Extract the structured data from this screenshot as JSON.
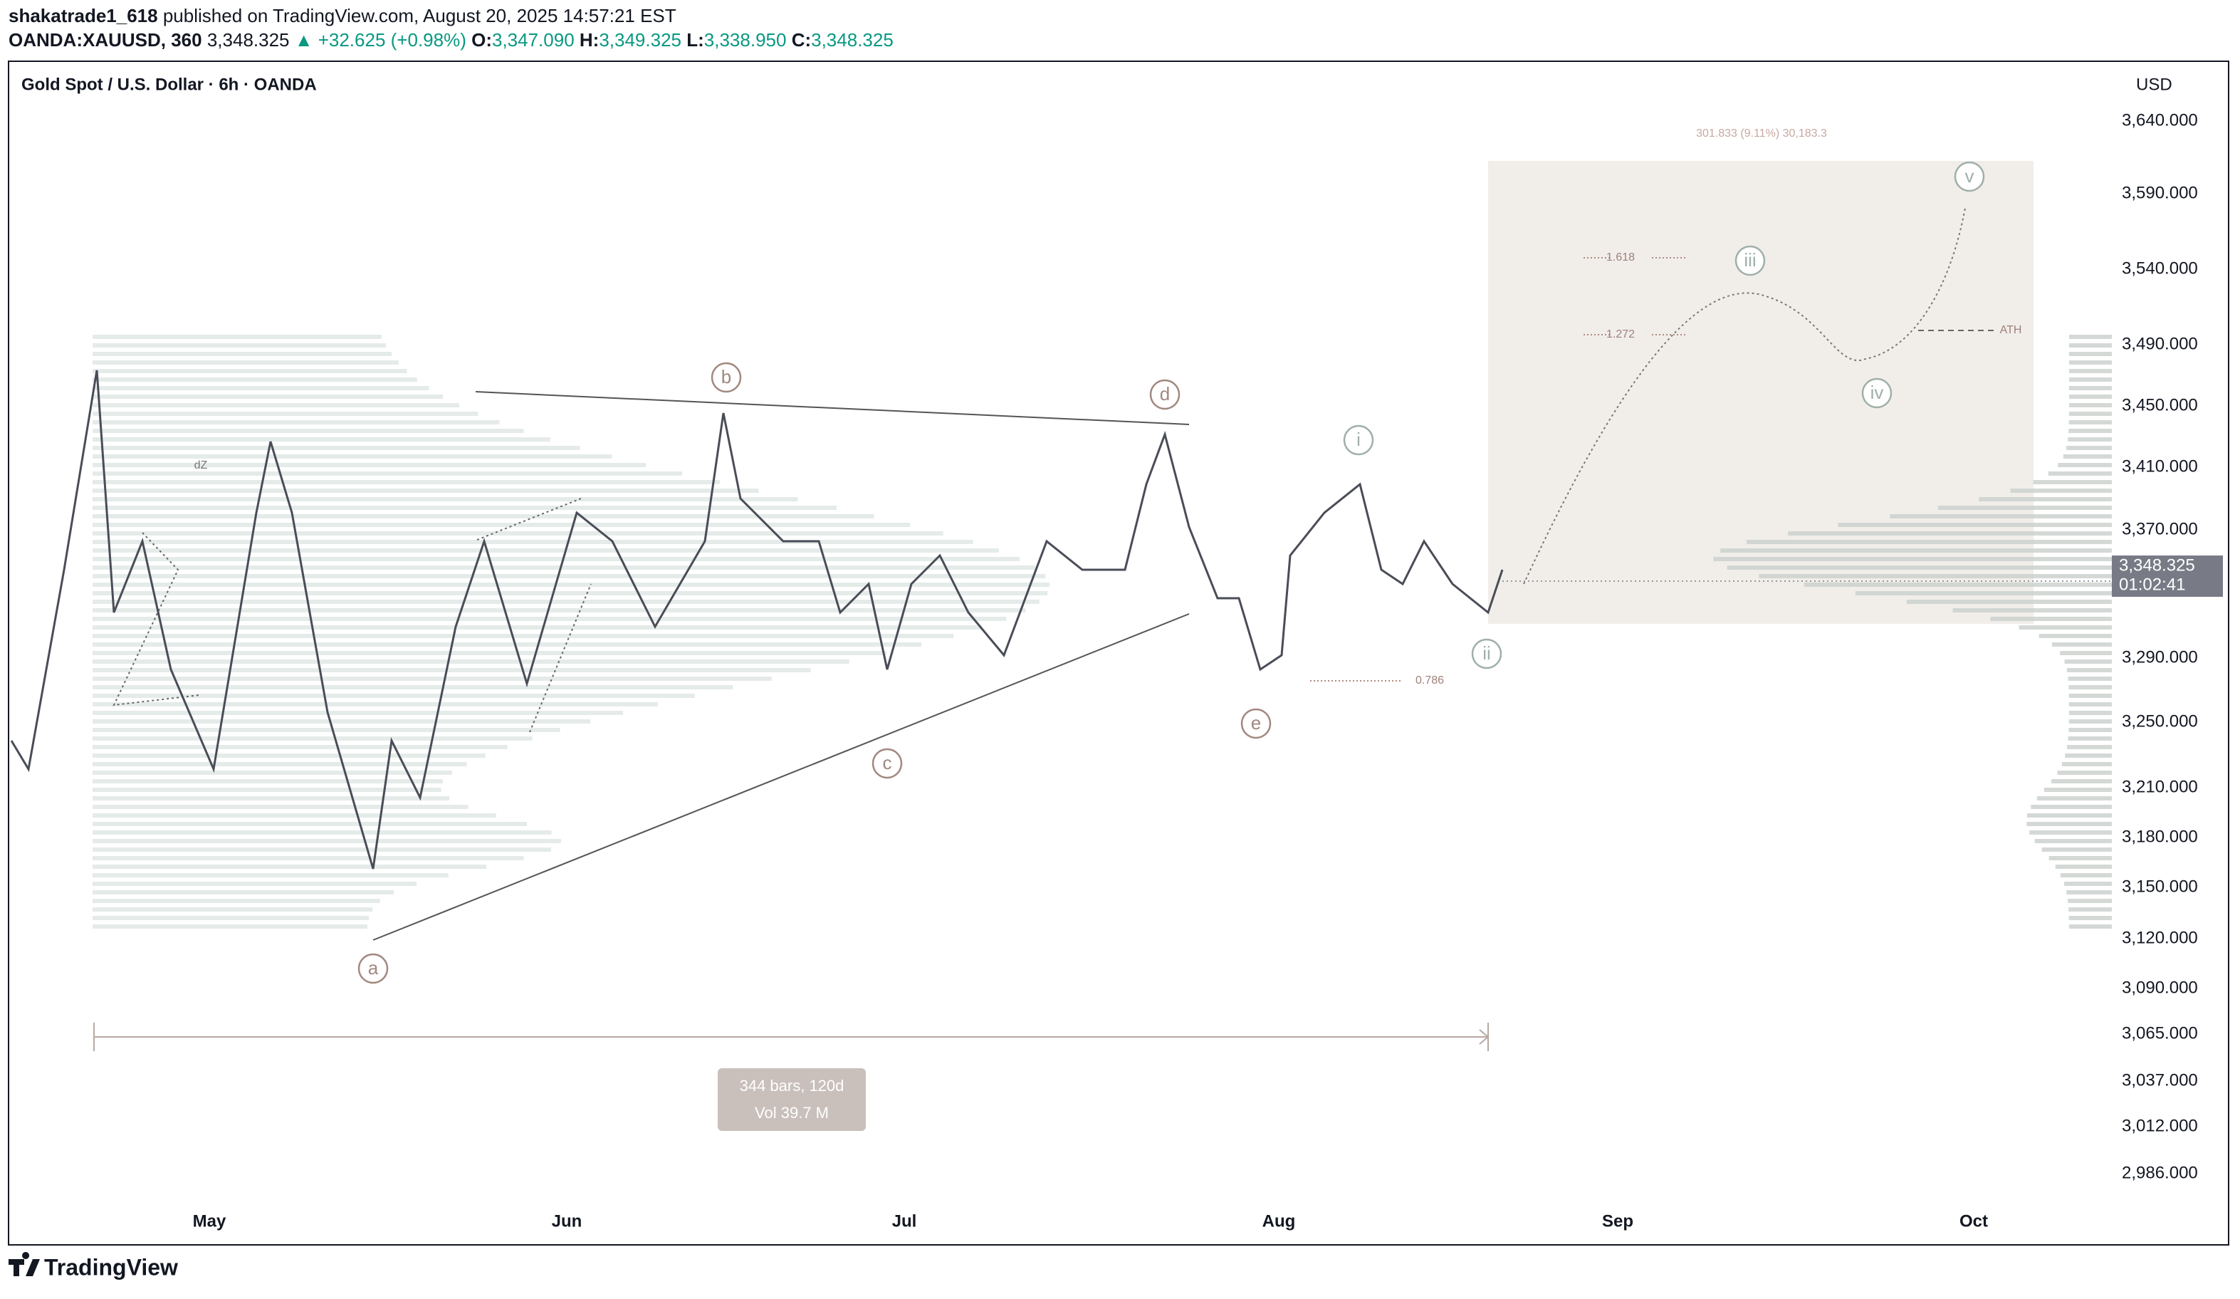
{
  "header": {
    "publisher": "shakatrade1_618",
    "published": "published on TradingView.com, August 20, 2025 14:57:21 EST",
    "symbol": "OANDA:XAUUSD, 360",
    "last": "3,348.325",
    "change": "▲ +32.625 (+0.98%)",
    "ohlc": [
      {
        "key": "O:",
        "value": "3,347.090"
      },
      {
        "key": "H:",
        "value": "3,349.325"
      },
      {
        "key": "L:",
        "value": "3,338.950"
      },
      {
        "key": "C:",
        "value": "3,348.325"
      }
    ]
  },
  "chart": {
    "title": "Gold Spot / U.S. Dollar · 6h · OANDA",
    "currency": "USD",
    "price_axis": [
      "3,640.000",
      "3,590.000",
      "3,540.000",
      "3,490.000",
      "3,450.000",
      "3,410.000",
      "3,370.000",
      "3,290.000",
      "3,250.000",
      "3,210.000",
      "3,180.000",
      "3,150.000",
      "3,120.000",
      "3,090.000",
      "3,065.000",
      "3,037.000",
      "3,012.000",
      "2,986.000"
    ],
    "time_axis": [
      "May",
      "Jun",
      "Jul",
      "Aug",
      "Sep",
      "Oct"
    ],
    "last_price": "3,348.325",
    "countdown": "01:02:41",
    "waves": [
      "a",
      "b",
      "c",
      "d",
      "e",
      "i",
      "ii",
      "iii",
      "iv",
      "v"
    ],
    "annotations": {
      "target": "301.833 (9.11%) 30,183.3",
      "fib_1618": "1.618",
      "fib_1272": "1.272",
      "ath": "ATH",
      "fib_0786": "0.786",
      "zone": "dZ"
    },
    "measure": {
      "bars": "344 bars, 120d",
      "volume": "Vol 39.7 M"
    }
  },
  "footer": {
    "brand": "TradingView"
  }
}
